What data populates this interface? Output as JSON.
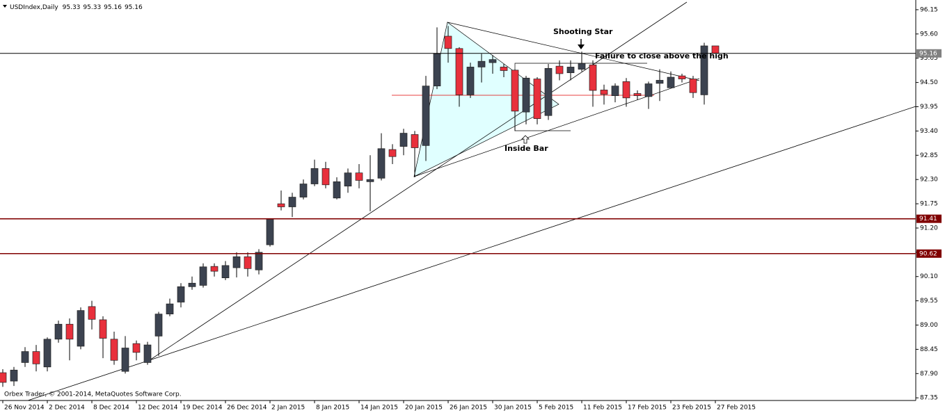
{
  "chart_data": {
    "type": "candlestick",
    "title": "USDIndex,Daily",
    "footer": "Orbex Trader, © 2001-2014, MetaQuotes Software Corp.",
    "categories": [
      "26 Nov 2014",
      null,
      null,
      null,
      "2 Dec 2014",
      null,
      null,
      null,
      "8 Dec 2014",
      null,
      null,
      null,
      "12 Dec 2014",
      null,
      null,
      null,
      "19 Dec 2014",
      null,
      null,
      null,
      "26 Dec 2014",
      null,
      null,
      null,
      "2 Jan 2015",
      null,
      null,
      null,
      "8 Jan 2015",
      null,
      null,
      null,
      "14 Jan 2015",
      null,
      null,
      null,
      "20 Jan 2015",
      null,
      null,
      null,
      "26 Jan 2015",
      null,
      null,
      null,
      "30 Jan 2015",
      null,
      null,
      null,
      "5 Feb 2015",
      null,
      null,
      null,
      "11 Feb 2015",
      null,
      null,
      null,
      "17 Feb 2015",
      null,
      null,
      null,
      "23 Feb 2015",
      null,
      null,
      null,
      "27 Feb 2015"
    ],
    "open": [
      87.92,
      87.73,
      88.15,
      88.4,
      88.05,
      88.68,
      89.02,
      88.52,
      89.42,
      89.12,
      88.68,
      87.95,
      88.58,
      88.15,
      88.75,
      89.25,
      89.52,
      89.87,
      89.9,
      90.33,
      90.07,
      90.3,
      90.55,
      90.25,
      90.82,
      91.75,
      91.68,
      91.9,
      92.2,
      92.55,
      91.88,
      92.15,
      92.45,
      92.25,
      92.33,
      92.98,
      93.05,
      93.32,
      93.07,
      94.42,
      95.55,
      95.27,
      94.22,
      94.85,
      94.95,
      94.85,
      94.78,
      93.83,
      94.58,
      93.75,
      94.87,
      94.72,
      94.8,
      94.9,
      94.33,
      94.2,
      94.52,
      94.25,
      94.18,
      94.48,
      94.38,
      94.65,
      94.58,
      94.22,
      95.33
    ],
    "high": [
      88.0,
      88.05,
      88.5,
      88.55,
      88.72,
      89.1,
      89.15,
      89.4,
      89.55,
      89.2,
      88.85,
      88.75,
      88.65,
      88.62,
      89.3,
      89.6,
      89.95,
      90.1,
      90.4,
      90.4,
      90.45,
      90.65,
      90.65,
      90.72,
      91.42,
      92.05,
      92.0,
      92.3,
      92.75,
      92.7,
      92.35,
      92.55,
      92.65,
      92.85,
      93.35,
      93.1,
      93.45,
      93.4,
      94.65,
      95.75,
      95.78,
      95.3,
      94.95,
      95.15,
      95.12,
      94.92,
      94.8,
      94.65,
      94.62,
      94.92,
      95.0,
      95.0,
      95.2,
      95.0,
      94.45,
      94.48,
      94.6,
      94.32,
      94.52,
      94.8,
      94.75,
      94.7,
      94.65,
      95.4,
      95.33
    ],
    "low": [
      87.6,
      87.62,
      88.05,
      87.95,
      87.95,
      88.6,
      88.2,
      88.45,
      88.9,
      88.25,
      88.1,
      87.9,
      88.2,
      88.1,
      88.3,
      89.2,
      89.4,
      89.8,
      89.85,
      90.1,
      90.02,
      90.08,
      90.1,
      90.15,
      90.78,
      91.6,
      91.45,
      91.85,
      92.15,
      92.1,
      91.85,
      92.0,
      92.1,
      91.58,
      92.28,
      92.65,
      92.85,
      92.35,
      92.72,
      94.35,
      94.95,
      93.95,
      94.15,
      94.5,
      94.7,
      94.62,
      93.4,
      93.55,
      93.55,
      93.65,
      94.55,
      94.55,
      94.75,
      93.95,
      94.0,
      94.05,
      93.95,
      94.1,
      93.9,
      94.08,
      94.38,
      94.5,
      94.15,
      94.0,
      95.16
    ],
    "close": [
      87.7,
      87.98,
      88.4,
      88.12,
      88.68,
      89.02,
      88.68,
      89.33,
      89.13,
      88.7,
      88.2,
      88.48,
      88.38,
      88.55,
      89.25,
      89.48,
      89.87,
      89.95,
      90.32,
      90.22,
      90.35,
      90.55,
      90.28,
      90.65,
      91.4,
      91.68,
      91.9,
      92.2,
      92.55,
      92.18,
      92.25,
      92.45,
      92.28,
      92.3,
      93.0,
      92.82,
      93.35,
      93.02,
      94.42,
      95.15,
      95.27,
      94.22,
      94.85,
      94.98,
      95.02,
      94.77,
      93.85,
      94.6,
      93.68,
      94.82,
      94.7,
      94.85,
      94.93,
      94.32,
      94.23,
      94.42,
      94.15,
      94.2,
      94.47,
      94.55,
      94.62,
      94.58,
      94.27,
      95.33,
      95.16
    ],
    "up_color": "#3c4350",
    "down_color": "#e8303c",
    "ylim": [
      87.29,
      96.37
    ],
    "yticks": [
      96.15,
      {
        "value": 95.6,
        "label": "95.60"
      },
      95.05,
      {
        "value": 94.5,
        "label": "94.50"
      },
      93.95,
      {
        "value": 93.4,
        "label": "93.40"
      },
      92.85,
      {
        "value": 92.3,
        "label": "92.30"
      },
      91.75,
      {
        "value": 91.2,
        "label": "91.20"
      },
      90.65,
      {
        "value": 90.1,
        "label": "90.10"
      },
      89.55,
      {
        "value": 89.0,
        "label": "89.00"
      },
      88.45,
      {
        "value": 87.9,
        "label": "87.90"
      },
      87.35
    ],
    "hlines": [
      {
        "value": 95.16,
        "color": "#000000",
        "label_color": "#808080"
      },
      {
        "value": 91.41,
        "color": "#800000",
        "label_color": "#800000"
      },
      {
        "value": 90.62,
        "color": "#800000",
        "label_color": "#800000"
      }
    ],
    "annotations": [
      "Shooting Star",
      "Failure to close above the high",
      "Inside Bar"
    ],
    "grid": false
  }
}
